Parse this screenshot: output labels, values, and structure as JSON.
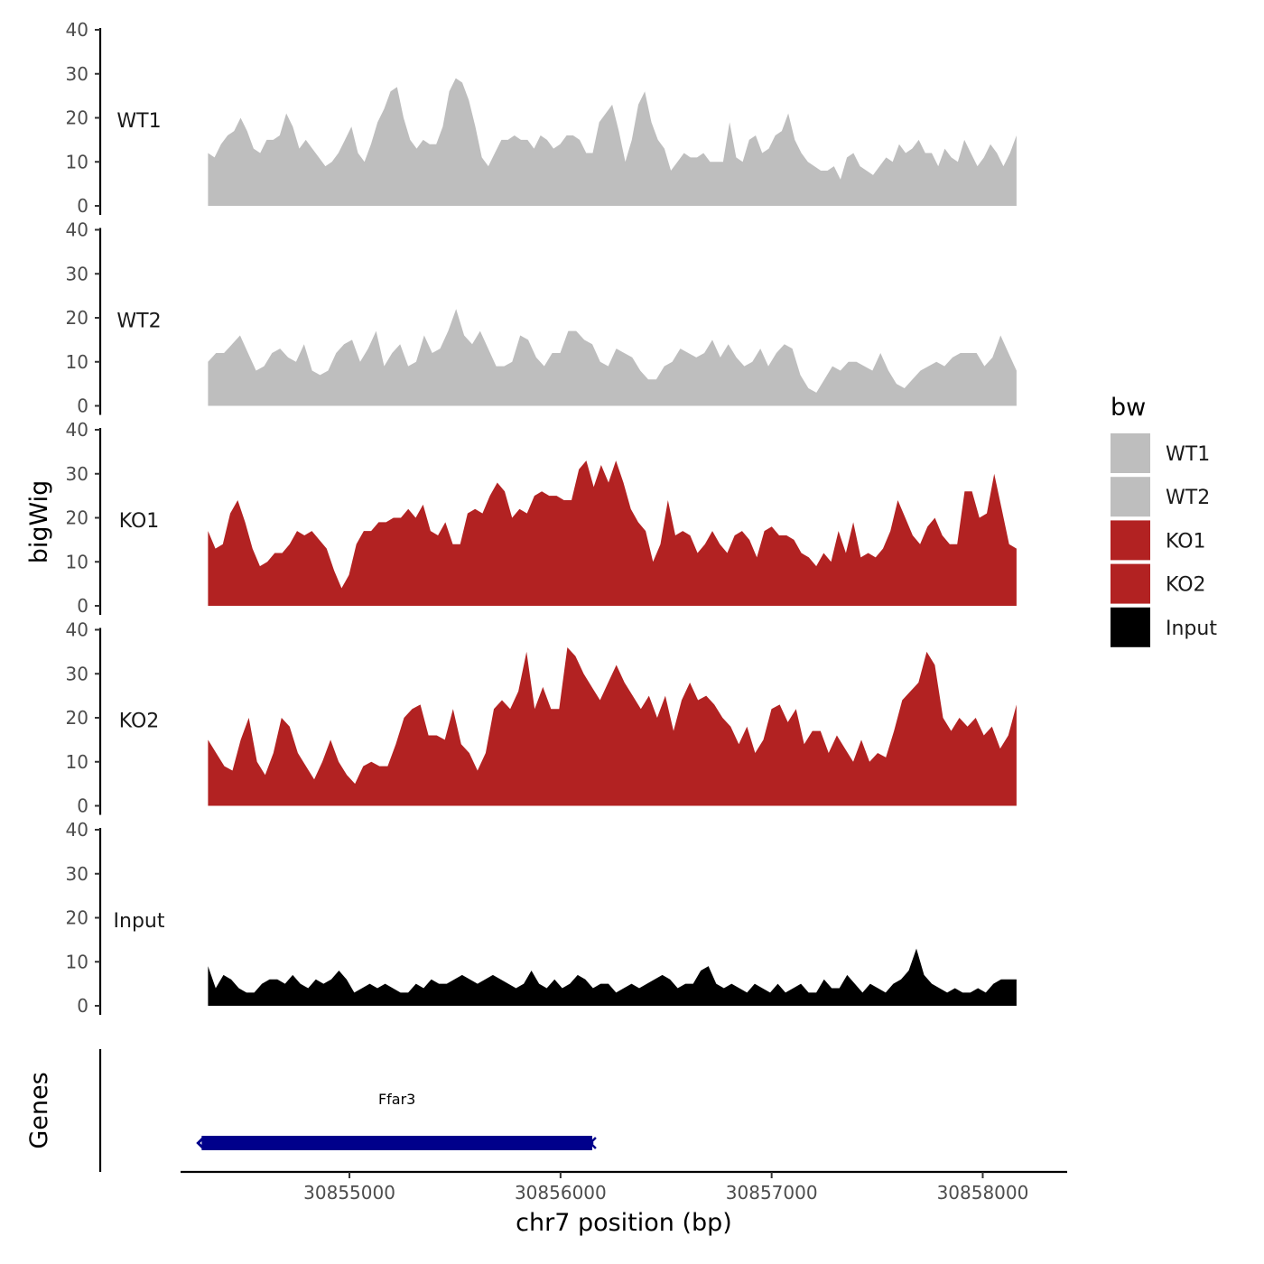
{
  "chart_data": {
    "type": "area",
    "chromosome": "chr7",
    "xlabel": "chr7 position (bp)",
    "ylabel": "bigWig",
    "genes_label": "Genes",
    "xlim": [
      30854200,
      30858400
    ],
    "x_ticks": [
      30855000,
      30856000,
      30857000,
      30858000
    ],
    "x_tick_labels": [
      "30855000",
      "30856000",
      "30857000",
      "30858000"
    ],
    "ylim": [
      0,
      40
    ],
    "y_ticks": [
      0,
      10,
      20,
      30,
      40
    ],
    "y_tick_labels": [
      "0",
      "10",
      "20",
      "30",
      "40"
    ],
    "legend": {
      "title": "bw",
      "entries": [
        {
          "label": "WT1",
          "color": "#bebebe"
        },
        {
          "label": "WT2",
          "color": "#bebebe"
        },
        {
          "label": "KO1",
          "color": "#b22222"
        },
        {
          "label": "KO2",
          "color": "#b22222"
        },
        {
          "label": "Input",
          "color": "#000000"
        }
      ]
    },
    "series": [
      {
        "name": "WT1",
        "color": "#bebebe",
        "x_start": 30854330,
        "x_end": 30858160,
        "values": [
          12,
          11,
          14,
          16,
          17,
          20,
          17,
          13,
          12,
          15,
          15,
          16,
          21,
          18,
          13,
          15,
          13,
          11,
          9,
          10,
          12,
          15,
          18,
          12,
          10,
          14,
          19,
          22,
          26,
          27,
          20,
          15,
          13,
          15,
          14,
          14,
          18,
          26,
          29,
          28,
          24,
          18,
          11,
          9,
          12,
          15,
          15,
          16,
          15,
          15,
          13,
          16,
          15,
          13,
          14,
          16,
          16,
          15,
          12,
          12,
          19,
          21,
          23,
          17,
          10,
          15,
          23,
          26,
          19,
          15,
          13,
          8,
          10,
          12,
          11,
          11,
          12,
          10,
          10,
          10,
          19,
          11,
          10,
          15,
          16,
          12,
          13,
          16,
          17,
          21,
          15,
          12,
          10,
          9,
          8,
          8,
          9,
          6,
          11,
          12,
          9,
          8,
          7,
          9,
          11,
          10,
          14,
          12,
          13,
          15,
          12,
          12,
          9,
          13,
          11,
          10,
          15,
          12,
          9,
          11,
          14,
          12,
          9,
          12,
          16
        ]
      },
      {
        "name": "WT2",
        "color": "#bebebe",
        "x_start": 30854330,
        "x_end": 30858160,
        "values": [
          10,
          12,
          12,
          14,
          16,
          12,
          8,
          9,
          12,
          13,
          11,
          10,
          14,
          8,
          7,
          8,
          12,
          14,
          15,
          10,
          13,
          17,
          9,
          12,
          14,
          9,
          10,
          16,
          12,
          13,
          17,
          22,
          16,
          14,
          17,
          13,
          9,
          9,
          10,
          16,
          15,
          11,
          9,
          12,
          12,
          17,
          17,
          15,
          14,
          10,
          9,
          13,
          12,
          11,
          8,
          6,
          6,
          9,
          10,
          13,
          12,
          11,
          12,
          15,
          11,
          14,
          11,
          9,
          10,
          13,
          9,
          12,
          14,
          13,
          7,
          4,
          3,
          6,
          9,
          8,
          10,
          10,
          9,
          8,
          12,
          8,
          5,
          4,
          6,
          8,
          9,
          10,
          9,
          11,
          12,
          12,
          12,
          9,
          11,
          16,
          12,
          8
        ]
      },
      {
        "name": "KO1",
        "color": "#b22222",
        "x_start": 30854330,
        "x_end": 30858160,
        "values": [
          17,
          13,
          14,
          21,
          24,
          19,
          13,
          9,
          10,
          12,
          12,
          14,
          17,
          16,
          17,
          15,
          13,
          8,
          4,
          7,
          14,
          17,
          17,
          19,
          19,
          20,
          20,
          22,
          20,
          23,
          17,
          16,
          19,
          14,
          14,
          21,
          22,
          21,
          25,
          28,
          26,
          20,
          22,
          21,
          25,
          26,
          25,
          25,
          24,
          24,
          31,
          33,
          27,
          32,
          28,
          33,
          28,
          22,
          19,
          17,
          10,
          14,
          24,
          16,
          17,
          16,
          12,
          14,
          17,
          14,
          12,
          16,
          17,
          15,
          11,
          17,
          18,
          16,
          16,
          15,
          12,
          11,
          9,
          12,
          10,
          17,
          12,
          19,
          11,
          12,
          11,
          13,
          17,
          24,
          20,
          16,
          14,
          18,
          20,
          16,
          14,
          14,
          26,
          26,
          20,
          21,
          30,
          22,
          14,
          13
        ]
      },
      {
        "name": "KO2",
        "color": "#b22222",
        "x_start": 30854330,
        "x_end": 30858160,
        "values": [
          15,
          12,
          9,
          8,
          15,
          20,
          10,
          7,
          12,
          20,
          18,
          12,
          9,
          6,
          10,
          15,
          10,
          7,
          5,
          9,
          10,
          9,
          9,
          14,
          20,
          22,
          23,
          16,
          16,
          15,
          22,
          14,
          12,
          8,
          12,
          22,
          24,
          22,
          26,
          35,
          22,
          27,
          22,
          22,
          36,
          34,
          30,
          27,
          24,
          28,
          32,
          28,
          25,
          22,
          25,
          20,
          25,
          17,
          24,
          28,
          24,
          25,
          23,
          20,
          18,
          14,
          18,
          12,
          15,
          22,
          23,
          19,
          22,
          14,
          17,
          17,
          12,
          16,
          13,
          10,
          15,
          10,
          12,
          11,
          17,
          24,
          26,
          28,
          35,
          32,
          20,
          17,
          20,
          18,
          20,
          16,
          18,
          13,
          16,
          23
        ]
      },
      {
        "name": "Input",
        "color": "#000000",
        "x_start": 30854330,
        "x_end": 30858160,
        "values": [
          9,
          4,
          7,
          6,
          4,
          3,
          3,
          5,
          6,
          6,
          5,
          7,
          5,
          4,
          6,
          5,
          6,
          8,
          6,
          3,
          4,
          5,
          4,
          5,
          4,
          3,
          3,
          5,
          4,
          6,
          5,
          5,
          6,
          7,
          6,
          5,
          6,
          7,
          6,
          5,
          4,
          5,
          8,
          5,
          4,
          6,
          4,
          5,
          7,
          6,
          4,
          5,
          5,
          3,
          4,
          5,
          4,
          5,
          6,
          7,
          6,
          4,
          5,
          5,
          8,
          9,
          5,
          4,
          5,
          4,
          3,
          5,
          4,
          3,
          5,
          3,
          4,
          5,
          3,
          3,
          6,
          4,
          4,
          7,
          5,
          3,
          5,
          4,
          3,
          5,
          6,
          8,
          13,
          7,
          5,
          4,
          3,
          4,
          3,
          3,
          4,
          3,
          5,
          6,
          6,
          6
        ]
      }
    ],
    "genes": [
      {
        "name": "Ffar3",
        "start": 30854300,
        "end": 30856150,
        "strand": "-",
        "color": "#00008b"
      }
    ]
  }
}
